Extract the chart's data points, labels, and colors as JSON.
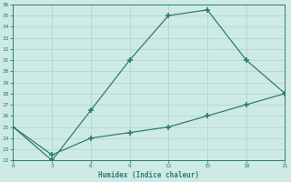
{
  "xlabel": "Humidex (Indice chaleur)",
  "x": [
    0,
    3,
    6,
    9,
    12,
    15,
    18,
    21
  ],
  "line1_y": [
    25.0,
    22.0,
    26.5,
    31.0,
    35.0,
    35.5,
    31.0,
    28.0
  ],
  "line2_y": [
    25.0,
    22.5,
    24.0,
    24.5,
    25.0,
    26.0,
    27.0,
    28.0
  ],
  "ylim": [
    22,
    36
  ],
  "xlim": [
    0,
    21
  ],
  "yticks": [
    22,
    23,
    24,
    25,
    26,
    27,
    28,
    29,
    30,
    31,
    32,
    33,
    34,
    35,
    36
  ],
  "xticks": [
    0,
    3,
    6,
    9,
    12,
    15,
    18,
    21
  ],
  "line_color": "#2e7d6e",
  "bg_color": "#ceeae6",
  "grid_color": "#aad4ce",
  "marker": "+",
  "markersize": 5,
  "linewidth": 0.9,
  "linestyle": "-"
}
